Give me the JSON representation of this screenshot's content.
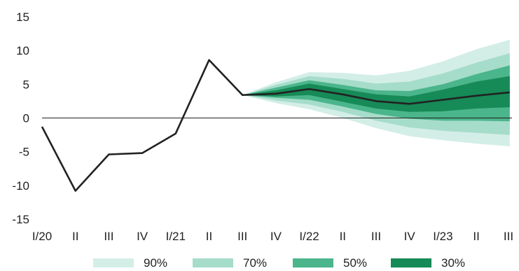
{
  "chart_data": {
    "type": "line",
    "title": "",
    "xlabel": "",
    "ylabel": "",
    "ylim": [
      -15,
      15
    ],
    "yticks": [
      "15",
      "10",
      "5",
      "0",
      "-5",
      "-10",
      "-15"
    ],
    "categories": [
      "I/20",
      "II",
      "III",
      "IV",
      "I/21",
      "II",
      "III",
      "IV",
      "I/22",
      "II",
      "III",
      "IV",
      "I/23",
      "II",
      "III"
    ],
    "series": [
      {
        "name": "",
        "values": [
          -1.3,
          -10.8,
          -5.4,
          -5.2,
          -2.3,
          8.6,
          3.4,
          3.6,
          4.3,
          3.5,
          2.5,
          2.1,
          2.7,
          3.3,
          3.8
        ]
      }
    ],
    "fan_start_index": 6,
    "fan_bands": [
      {
        "name": "90%",
        "color": "#d3eee7",
        "lower": [
          3.4,
          2.2,
          1.3,
          0.0,
          -1.5,
          -2.7,
          -3.3,
          -3.8,
          -4.2
        ],
        "upper": [
          3.4,
          5.3,
          6.8,
          6.7,
          6.3,
          7.0,
          8.4,
          10.2,
          11.6
        ]
      },
      {
        "name": "70%",
        "color": "#a6dcca",
        "lower": [
          3.4,
          2.6,
          2.0,
          0.9,
          -0.4,
          -1.4,
          -1.9,
          -2.2,
          -2.5
        ],
        "upper": [
          3.4,
          4.9,
          6.2,
          5.8,
          5.1,
          5.4,
          6.6,
          8.2,
          9.6
        ]
      },
      {
        "name": "50%",
        "color": "#4bb58b",
        "lower": [
          3.4,
          3.0,
          2.7,
          1.7,
          0.6,
          -0.1,
          -0.4,
          -0.4,
          -0.5
        ],
        "upper": [
          3.4,
          4.5,
          5.6,
          4.9,
          4.1,
          4.0,
          5.0,
          6.5,
          7.8
        ]
      },
      {
        "name": "30%",
        "color": "#168a57",
        "lower": [
          3.4,
          3.2,
          3.4,
          2.4,
          1.4,
          0.9,
          1.0,
          1.4,
          1.6
        ],
        "upper": [
          3.4,
          4.1,
          5.1,
          4.3,
          3.5,
          3.2,
          4.2,
          5.4,
          6.2
        ]
      }
    ],
    "grid": false,
    "legend_position": "bottom"
  }
}
